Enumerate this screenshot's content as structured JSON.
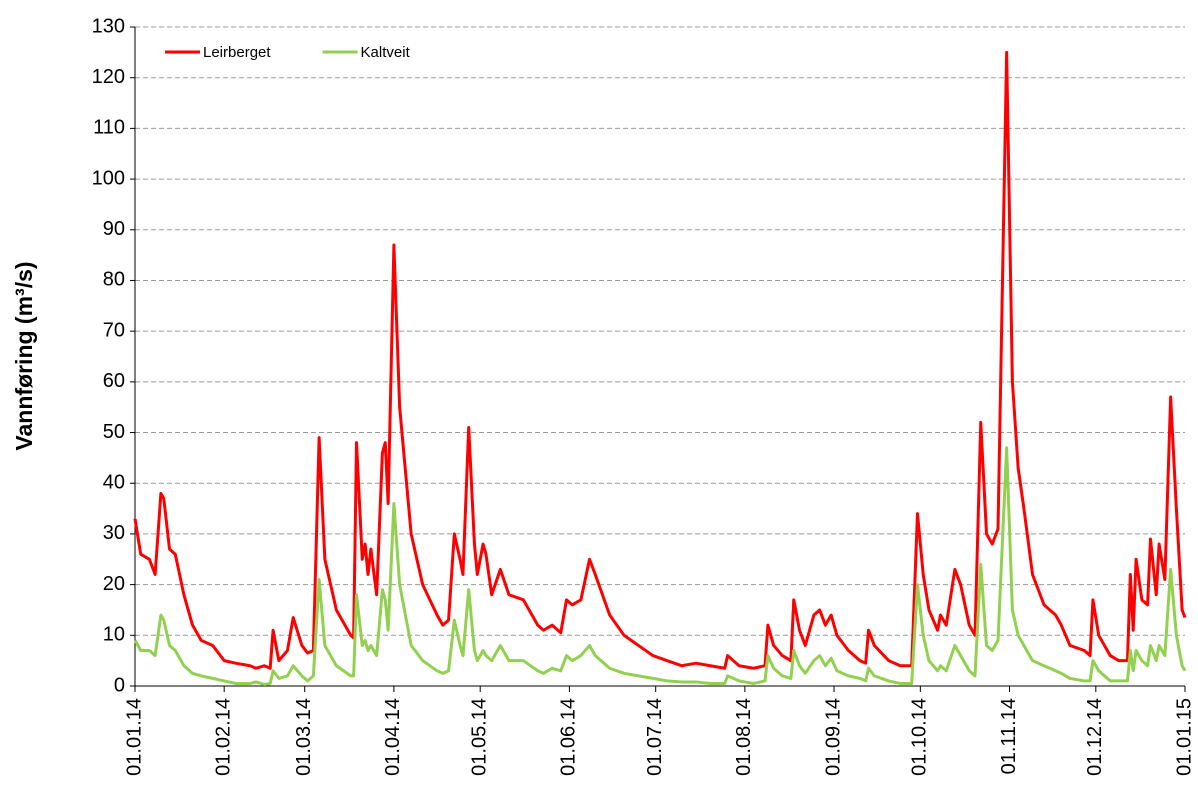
{
  "chart_data": {
    "type": "line",
    "y_label": "Vannføring (m³/s)",
    "x": [
      "01.01.14",
      "03.01.14",
      "06.01.14",
      "08.01.14",
      "10.01.14",
      "11.01.14",
      "13.01.14",
      "15.01.14",
      "18.01.14",
      "21.01.14",
      "24.01.14",
      "28.01.14",
      "01.02.14",
      "05.02.14",
      "10.02.14",
      "12.02.14",
      "15.02.14",
      "17.02.14",
      "18.02.14",
      "20.02.14",
      "23.02.14",
      "25.02.14",
      "28.02.14",
      "02.03.14",
      "04.03.14",
      "06.03.14",
      "08.03.14",
      "12.03.14",
      "17.03.14",
      "18.03.14",
      "19.03.14",
      "21.03.14",
      "22.03.14",
      "23.03.14",
      "24.03.14",
      "26.03.14",
      "28.03.14",
      "29.03.14",
      "30.03.14",
      "01.04.14",
      "03.04.14",
      "07.04.14",
      "11.04.14",
      "16.04.14",
      "18.04.14",
      "20.04.14",
      "22.04.14",
      "24.04.14",
      "25.04.14",
      "27.04.14",
      "29.04.14",
      "30.04.14",
      "02.05.14",
      "03.05.14",
      "05.05.14",
      "08.05.14",
      "11.05.14",
      "16.05.14",
      "21.05.14",
      "23.05.14",
      "26.05.14",
      "29.05.14",
      "31.05.14",
      "02.06.14",
      "05.06.14",
      "08.06.14",
      "10.06.14",
      "15.06.14",
      "20.06.14",
      "25.06.14",
      "30.06.14",
      "05.07.14",
      "10.07.14",
      "15.07.14",
      "20.07.14",
      "25.07.14",
      "26.07.14",
      "30.07.14",
      "04.08.14",
      "08.08.14",
      "09.08.14",
      "11.08.14",
      "14.08.14",
      "17.08.14",
      "18.08.14",
      "20.08.14",
      "22.08.14",
      "25.08.14",
      "27.08.14",
      "29.08.14",
      "31.08.14",
      "02.09.14",
      "06.09.14",
      "10.09.14",
      "12.09.14",
      "13.09.14",
      "15.09.14",
      "20.09.14",
      "24.09.14",
      "28.09.14",
      "30.09.14",
      "02.10.14",
      "04.10.14",
      "07.10.14",
      "08.10.14",
      "10.10.14",
      "13.10.14",
      "15.10.14",
      "18.10.14",
      "20.10.14",
      "22.10.14",
      "24.10.14",
      "26.10.14",
      "28.10.14",
      "31.10.14",
      "02.11.14",
      "04.11.14",
      "06.11.14",
      "09.11.14",
      "13.11.14",
      "17.11.14",
      "19.11.14",
      "22.11.14",
      "27.11.14",
      "29.11.14",
      "30.11.14",
      "02.12.14",
      "06.12.14",
      "09.12.14",
      "12.12.14",
      "13.12.14",
      "14.12.14",
      "15.12.14",
      "17.12.14",
      "19.12.14",
      "20.12.14",
      "22.12.14",
      "23.12.14",
      "25.12.14",
      "27.12.14",
      "29.12.14",
      "31.12.14",
      "01.01.15"
    ],
    "series": [
      {
        "name": "Leirberget",
        "color": "#ff0000",
        "values": [
          33,
          26,
          25,
          22,
          38,
          37,
          27,
          26,
          18,
          12,
          9,
          8,
          5,
          4.5,
          4,
          3.5,
          4,
          3.5,
          11,
          5,
          7,
          13.5,
          8,
          6.5,
          7,
          49,
          25,
          15,
          10,
          9.5,
          48,
          25,
          28,
          22,
          27,
          18,
          46,
          48,
          36,
          87,
          55,
          30,
          20,
          14,
          12,
          13,
          30,
          25,
          22,
          51,
          28,
          22,
          28,
          26,
          18,
          23,
          18,
          17,
          12,
          11,
          12,
          10.5,
          17,
          16,
          17,
          25,
          22,
          14,
          10,
          8,
          6,
          5,
          4,
          4.5,
          4,
          3.5,
          6,
          4,
          3.5,
          4,
          12,
          8,
          6,
          5,
          17,
          11,
          8,
          14,
          15,
          12,
          14,
          10,
          7,
          5,
          4.5,
          11,
          8,
          5,
          4,
          4,
          34,
          22,
          15,
          11,
          14,
          12,
          23,
          20,
          12,
          10,
          52,
          30,
          28,
          31,
          125,
          60,
          43,
          35,
          22,
          16,
          14,
          12,
          8,
          7,
          6,
          17,
          10,
          6,
          5,
          5,
          22,
          11,
          25,
          17,
          16,
          29,
          18,
          28,
          21,
          57,
          35,
          15,
          13.5
        ]
      },
      {
        "name": "Kaltveit",
        "color": "#92d050",
        "values": [
          9,
          7,
          7,
          6,
          14,
          13,
          8,
          7,
          4,
          2.5,
          2,
          1.5,
          1,
          0.5,
          0.5,
          0.8,
          0.3,
          0.5,
          3,
          1.5,
          2,
          4,
          2,
          1,
          2,
          21,
          8,
          4,
          2,
          2,
          18,
          8,
          9,
          7,
          8,
          6,
          19,
          17,
          11,
          36,
          20,
          8,
          5,
          3,
          2.5,
          3,
          13,
          8,
          6,
          19,
          7,
          5,
          7,
          6,
          5,
          8,
          5,
          5,
          3,
          2.5,
          3.5,
          3,
          6,
          5,
          6,
          8,
          6,
          3.5,
          2.5,
          2,
          1.5,
          1,
          0.8,
          0.8,
          0.5,
          0.5,
          2,
          1,
          0.5,
          1,
          6,
          3.5,
          2,
          1.5,
          7,
          4,
          2.5,
          5,
          6,
          4,
          5.5,
          3,
          2,
          1.5,
          1,
          3.5,
          2,
          1,
          0.5,
          0.5,
          20,
          10,
          5,
          3,
          4,
          3,
          8,
          6,
          3,
          2,
          24,
          8,
          7,
          9,
          47,
          15,
          10,
          8,
          5,
          4,
          3,
          2.5,
          1.5,
          1,
          1,
          5,
          3,
          1,
          1,
          1,
          7,
          3,
          7,
          5,
          4,
          8,
          5,
          8,
          6,
          23,
          10,
          4,
          3
        ]
      }
    ],
    "xlim": [
      "01.01.14",
      "01.01.15"
    ],
    "xticks": [
      "01.01.14",
      "01.02.14",
      "01.03.14",
      "01.04.14",
      "01.05.14",
      "01.06.14",
      "01.07.14",
      "01.08.14",
      "01.09.14",
      "01.10.14",
      "01.11.14",
      "01.12.14",
      "01.01.15"
    ],
    "ylim": [
      0,
      130
    ],
    "yticks": [
      0,
      10,
      20,
      30,
      40,
      50,
      60,
      70,
      80,
      90,
      100,
      110,
      120,
      130
    ],
    "grid": true,
    "legend": "top-left"
  }
}
